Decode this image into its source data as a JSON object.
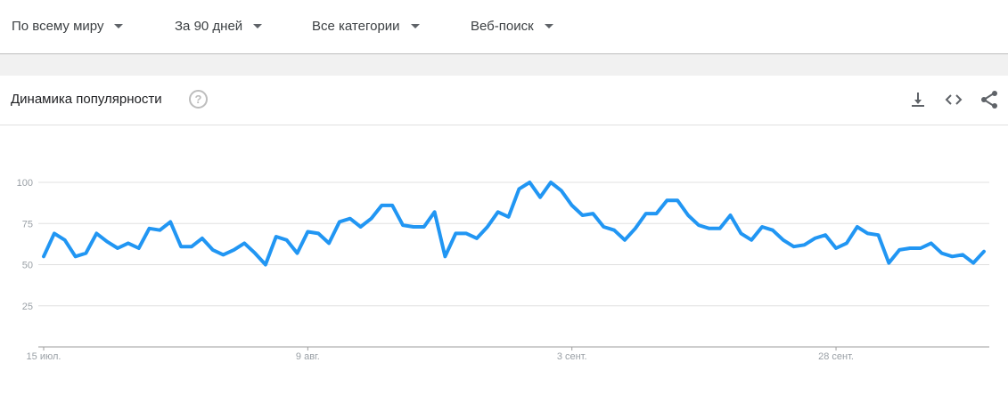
{
  "filters": {
    "region": "По всему миру",
    "period": "За 90 дней",
    "category": "Все категории",
    "search_type": "Веб-поиск"
  },
  "card": {
    "title": "Динамика популярности",
    "help_symbol": "?"
  },
  "icons": [
    "download-icon",
    "embed-code-icon",
    "share-icon"
  ],
  "chart_data": {
    "type": "line",
    "title": "",
    "xlabel": "",
    "ylabel": "",
    "ylim": [
      0,
      100
    ],
    "yticks": [
      25,
      50,
      75,
      100
    ],
    "xtick_labels": [
      {
        "label": "15 июл.",
        "index": 0
      },
      {
        "label": "9 авг.",
        "index": 25
      },
      {
        "label": "3 сент.",
        "index": 50
      },
      {
        "label": "28 сент.",
        "index": 75
      }
    ],
    "grid": true,
    "line_color": "#2196f3",
    "series": [
      {
        "values": [
          55,
          69,
          65,
          55,
          57,
          69,
          64,
          60,
          63,
          60,
          72,
          71,
          76,
          61,
          61,
          66,
          59,
          56,
          59,
          63,
          57,
          50,
          67,
          65,
          57,
          70,
          69,
          63,
          76,
          78,
          73,
          78,
          86,
          86,
          74,
          73,
          73,
          82,
          55,
          69,
          69,
          66,
          73,
          82,
          79,
          96,
          100,
          91,
          100,
          95,
          86,
          80,
          81,
          73,
          71,
          65,
          72,
          81,
          81,
          89,
          89,
          80,
          74,
          72,
          72,
          80,
          69,
          65,
          73,
          71,
          65,
          61,
          62,
          66,
          68,
          60,
          63,
          73,
          69,
          68,
          51,
          59,
          60,
          60,
          63,
          57,
          55,
          56,
          51,
          58
        ]
      }
    ]
  }
}
